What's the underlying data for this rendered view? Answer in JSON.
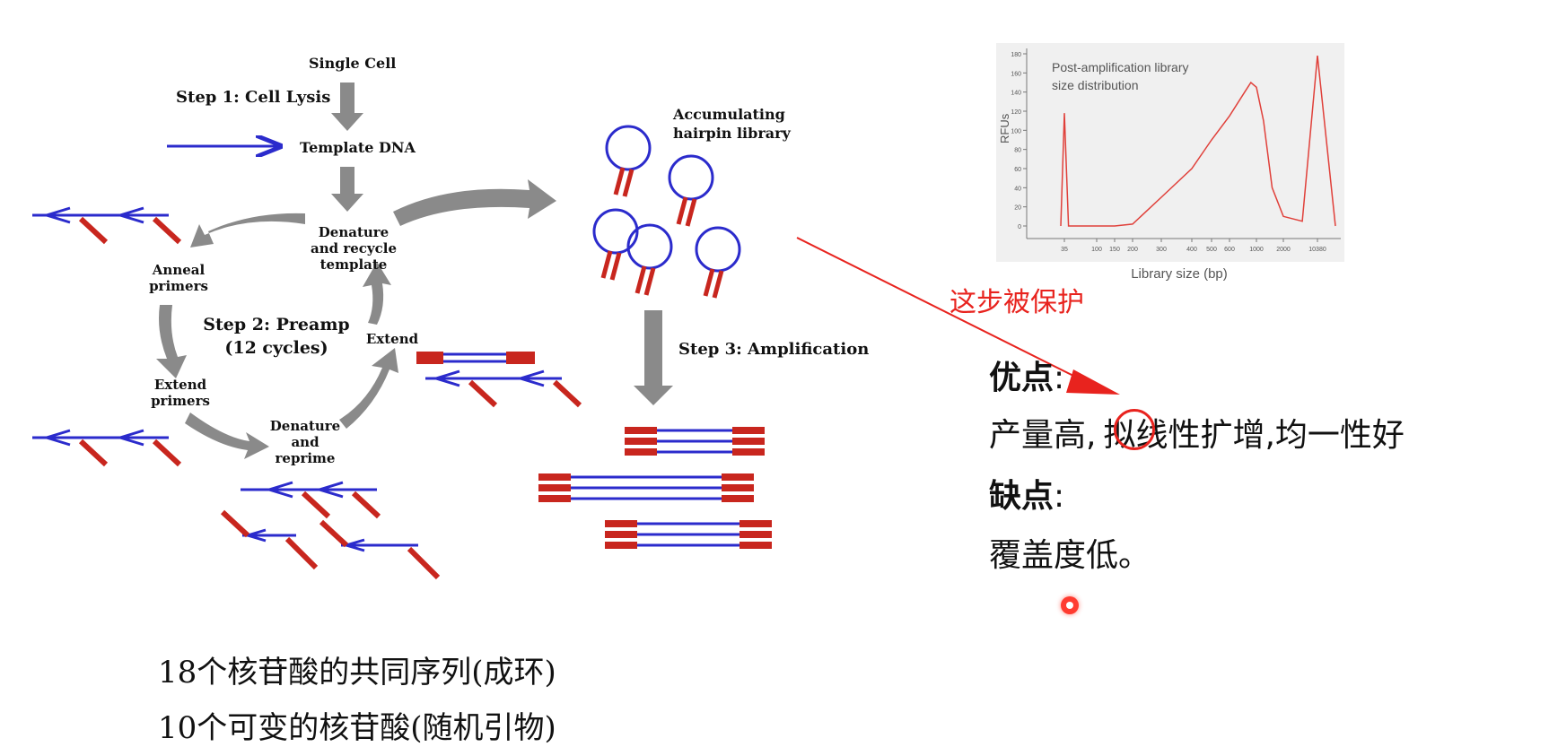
{
  "diagram": {
    "single_cell": "Single Cell",
    "step1": "Step 1: Cell Lysis",
    "template_dna": "Template DNA",
    "denature_recycle": [
      "Denature",
      "and recycle",
      "template"
    ],
    "anneal_primers": [
      "Anneal",
      "primers"
    ],
    "step2": [
      "Step 2: Preamp",
      "(12 cycles)"
    ],
    "extend": "Extend",
    "extend_primers": [
      "Extend",
      "primers"
    ],
    "denature_reprime": [
      "Denature",
      "and",
      "reprime"
    ],
    "accumulating": [
      "Accumulating",
      "hairpin library"
    ],
    "step3": "Step 3: Amplification",
    "colors": {
      "strand": "#2b2bcc",
      "primer": "#c8261e",
      "arrow": "#8a8a8a"
    }
  },
  "chart": {
    "annotation": [
      "Post-amplification library",
      "size distribution"
    ],
    "ylabel": "RFUs",
    "xlabel": "Library size (bp)",
    "y_ticks": [
      "0",
      "20",
      "40",
      "60",
      "80",
      "100",
      "120",
      "140",
      "160",
      "180"
    ],
    "x_ticks": [
      "35",
      "100",
      "150",
      "200",
      "300",
      "400",
      "500",
      "600",
      "1000",
      "2000",
      "10380"
    ],
    "line_color": "#e0403a"
  },
  "chart_data": {
    "type": "line",
    "xlabel": "Library size (bp)",
    "ylabel": "RFUs",
    "ylim": [
      0,
      180
    ],
    "x_ticks": [
      35,
      100,
      150,
      200,
      300,
      400,
      500,
      600,
      1000,
      2000,
      10380
    ],
    "grid": false,
    "series": [
      {
        "values": [
          [
            30,
            0
          ],
          [
            35,
            118
          ],
          [
            40,
            0
          ],
          [
            100,
            0
          ],
          [
            150,
            0
          ],
          [
            200,
            2
          ],
          [
            300,
            30
          ],
          [
            400,
            60
          ],
          [
            500,
            90
          ],
          [
            600,
            115
          ],
          [
            800,
            140
          ],
          [
            900,
            150
          ],
          [
            1000,
            145
          ],
          [
            1200,
            110
          ],
          [
            1500,
            40
          ],
          [
            2000,
            10
          ],
          [
            5000,
            5
          ],
          [
            10380,
            178
          ],
          [
            12000,
            0
          ]
        ]
      }
    ]
  },
  "annotation_red": "这步被保护",
  "pros_label": "优点",
  "pros_colon": ":",
  "pros_text": [
    "产量高,",
    "拟",
    "线性扩增,均一性好"
  ],
  "cons_label": "缺点",
  "cons_colon": ":",
  "cons_text": "覆盖度低。",
  "note1": "18个核苷酸的共同序列(成环)",
  "note2": "10个可变的核苷酸(随机引物)"
}
